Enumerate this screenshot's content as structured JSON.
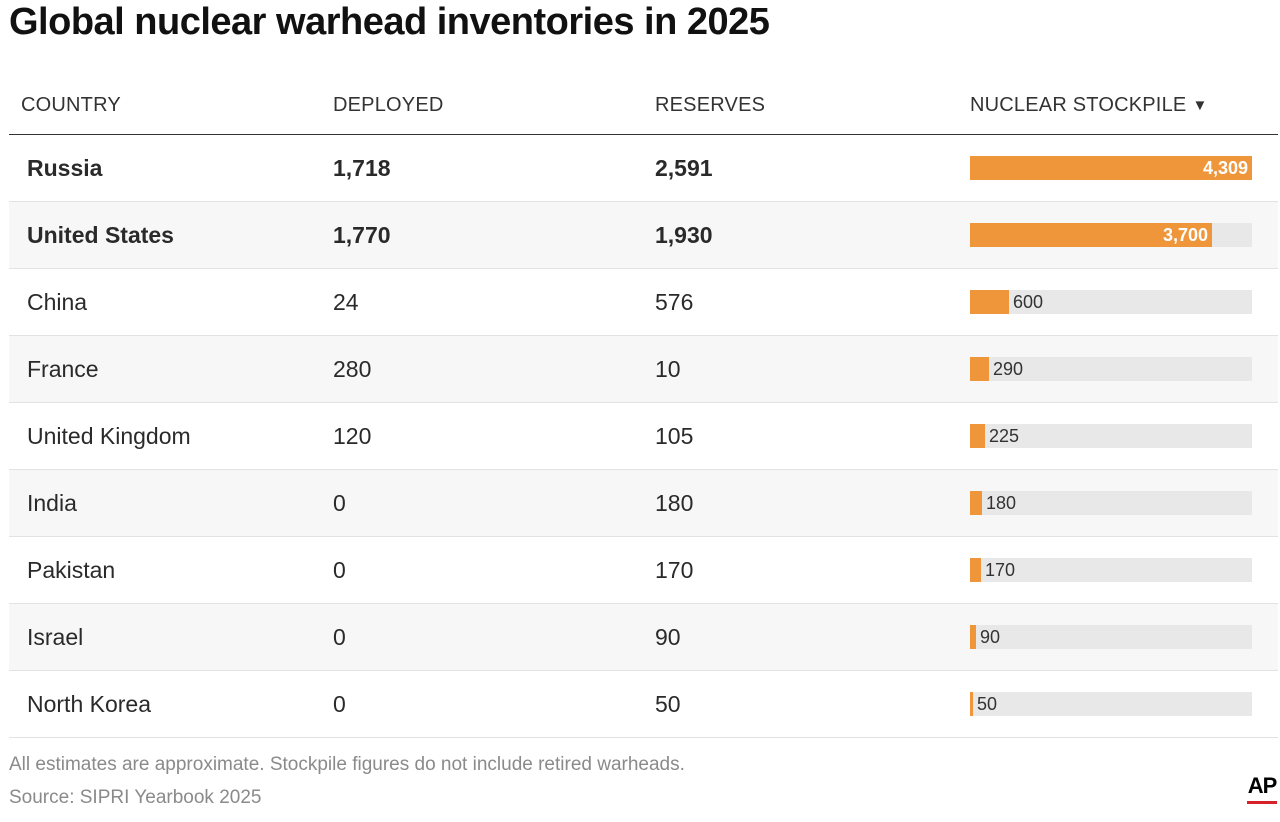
{
  "title": "Global nuclear warhead inventories in 2025",
  "columns": {
    "country": "COUNTRY",
    "deployed": "DEPLOYED",
    "reserves": "RESERVES",
    "stockpile": "NUCLEAR STOCKPILE",
    "sort_indicator": "▼"
  },
  "colors": {
    "bar": "#f0963a",
    "track": "#e8e8e8",
    "alt_row": "#f7f7f7",
    "ap_red": "#d6202a"
  },
  "chart_data": {
    "type": "table",
    "title": "Global nuclear warhead inventories in 2025",
    "columns": [
      "COUNTRY",
      "DEPLOYED",
      "RESERVES",
      "NUCLEAR STOCKPILE"
    ],
    "sorted_by": "NUCLEAR STOCKPILE",
    "sort_order": "descending",
    "bar_max": 4309,
    "rows": [
      {
        "country": "Russia",
        "deployed": "1,718",
        "reserves": "2,591",
        "stockpile": 4309,
        "stockpile_label": "4,309",
        "bold": true
      },
      {
        "country": "United States",
        "deployed": "1,770",
        "reserves": "1,930",
        "stockpile": 3700,
        "stockpile_label": "3,700",
        "bold": true
      },
      {
        "country": "China",
        "deployed": "24",
        "reserves": "576",
        "stockpile": 600,
        "stockpile_label": "600",
        "bold": false
      },
      {
        "country": "France",
        "deployed": "280",
        "reserves": "10",
        "stockpile": 290,
        "stockpile_label": "290",
        "bold": false
      },
      {
        "country": "United Kingdom",
        "deployed": "120",
        "reserves": "105",
        "stockpile": 225,
        "stockpile_label": "225",
        "bold": false
      },
      {
        "country": "India",
        "deployed": "0",
        "reserves": "180",
        "stockpile": 180,
        "stockpile_label": "180",
        "bold": false
      },
      {
        "country": "Pakistan",
        "deployed": "0",
        "reserves": "170",
        "stockpile": 170,
        "stockpile_label": "170",
        "bold": false
      },
      {
        "country": "Israel",
        "deployed": "0",
        "reserves": "90",
        "stockpile": 90,
        "stockpile_label": "90",
        "bold": false
      },
      {
        "country": "North Korea",
        "deployed": "0",
        "reserves": "50",
        "stockpile": 50,
        "stockpile_label": "50",
        "bold": false
      }
    ]
  },
  "notes": {
    "disclaimer": "All estimates are approximate. Stockpile figures do not include retired warheads.",
    "source": "Source: SIPRI Yearbook 2025"
  },
  "logo": {
    "text": "AP"
  }
}
